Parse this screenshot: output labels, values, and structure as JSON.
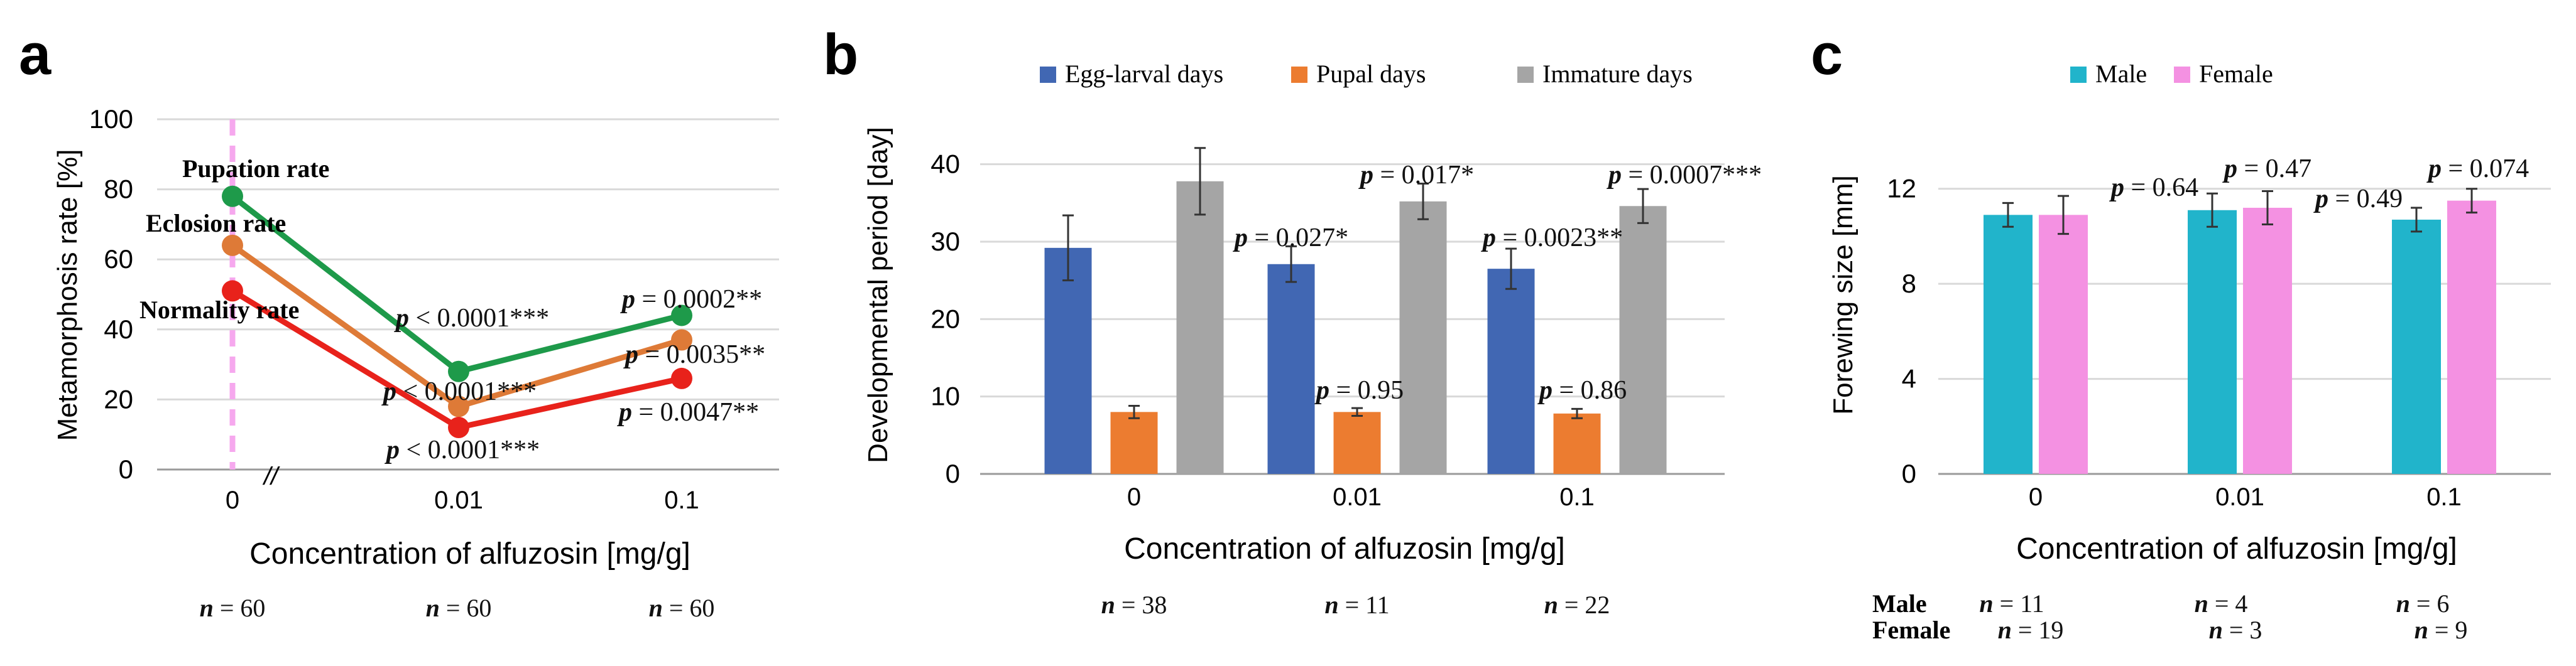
{
  "panels": {
    "a": {
      "letter": "a",
      "chart_data": {
        "type": "line",
        "xlabel": "Concentration of alfuzosin [mg/g]",
        "ylabel": "Metamorphosis rate [%]",
        "categories": [
          "0",
          "0.01",
          "0.1"
        ],
        "yticks": [
          "0",
          "20",
          "40",
          "60",
          "80",
          "100"
        ],
        "ylim": [
          0,
          100
        ],
        "axis_break": "//",
        "series": [
          {
            "name": "Pupation rate",
            "color": "#1e9a4a",
            "values": [
              78,
              28,
              44
            ],
            "pvalues": [
              "",
              "p < 0.0001***",
              "p = 0.0002**"
            ]
          },
          {
            "name": "Eclosion rate",
            "color": "#de7a37",
            "values": [
              64,
              18,
              37
            ],
            "pvalues": [
              "",
              "p < 0.0001***",
              "p = 0.0035**"
            ]
          },
          {
            "name": "Normality rate",
            "color": "#e8221b",
            "values": [
              51,
              12,
              26
            ],
            "pvalues": [
              "",
              "p < 0.0001***",
              "p = 0.0047**"
            ]
          }
        ],
        "n_labels": [
          "n = 60",
          "n = 60",
          "n = 60"
        ]
      }
    },
    "b": {
      "letter": "b",
      "chart_data": {
        "type": "bar",
        "xlabel": "Concentration of alfuzosin [mg/g]",
        "ylabel": "Developmental period [day]",
        "categories": [
          "0",
          "0.01",
          "0.1"
        ],
        "yticks": [
          "0",
          "10",
          "20",
          "30",
          "40"
        ],
        "ylim": [
          0,
          45
        ],
        "legend": [
          "Egg-larval days",
          "Pupal days",
          "Immature days"
        ],
        "series": [
          {
            "name": "Egg-larval days",
            "color": "#4167b3",
            "values": [
              29.2,
              27.1,
              26.5
            ],
            "errors": [
              4.2,
              2.3,
              2.6
            ],
            "pvalues": [
              "",
              "p = 0.027*",
              "p = 0.0023**"
            ]
          },
          {
            "name": "Pupal days",
            "color": "#ec7c30",
            "values": [
              8.0,
              8.0,
              7.8
            ],
            "errors": [
              0.8,
              0.5,
              0.6
            ],
            "pvalues": [
              "",
              "p = 0.95",
              "p = 0.86"
            ]
          },
          {
            "name": "Immature days",
            "color": "#a5a5a5",
            "values": [
              37.8,
              35.2,
              34.6
            ],
            "errors": [
              4.3,
              2.3,
              2.2
            ],
            "pvalues": [
              "",
              "p = 0.017*",
              "p = 0.0007***"
            ]
          }
        ],
        "n_labels": [
          "n = 38",
          "n = 11",
          "n = 22"
        ]
      }
    },
    "c": {
      "letter": "c",
      "chart_data": {
        "type": "bar",
        "xlabel": "Concentration of alfuzosin [mg/g]",
        "ylabel": "Forewing size [mm]",
        "categories": [
          "0",
          "0.01",
          "0.1"
        ],
        "yticks": [
          "0",
          "4",
          "8",
          "12"
        ],
        "ylim": [
          0,
          14
        ],
        "legend": [
          "Male",
          "Female"
        ],
        "series": [
          {
            "name": "Male",
            "color": "#21b4cb",
            "values": [
              10.9,
              11.1,
              10.7
            ],
            "errors": [
              0.5,
              0.7,
              0.5
            ],
            "pvalues": [
              "",
              "p = 0.64",
              "p = 0.49"
            ]
          },
          {
            "name": "Female",
            "color": "#f491e2",
            "values": [
              10.9,
              11.2,
              11.5
            ],
            "errors": [
              0.8,
              0.7,
              0.5
            ],
            "pvalues": [
              "",
              "p = 0.47",
              "p = 0.074"
            ]
          }
        ],
        "n_rows": [
          {
            "label": "Male",
            "values": [
              "n = 11",
              "n = 4",
              "n = 6"
            ]
          },
          {
            "label": "Female",
            "values": [
              "n = 19",
              "n = 3",
              "n = 9"
            ]
          }
        ]
      }
    }
  }
}
